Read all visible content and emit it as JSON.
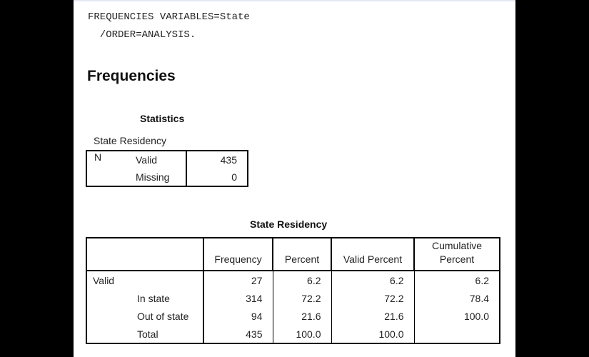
{
  "syntax": {
    "line1": "FREQUENCIES VARIABLES=State",
    "line2": "  /ORDER=ANALYSIS."
  },
  "section_heading": "Frequencies",
  "statistics": {
    "caption": "Statistics",
    "variable_label": "State Residency",
    "rows": [
      {
        "group": "N",
        "label": "Valid",
        "value": "435"
      },
      {
        "group": "",
        "label": "Missing",
        "value": "0"
      }
    ]
  },
  "frequency_table": {
    "caption": "State Residency",
    "headers": [
      "Frequency",
      "Percent",
      "Valid Percent",
      "Cumulative\nPercent"
    ],
    "rows": [
      {
        "group": "Valid",
        "label": "",
        "frequency": "27",
        "percent": "6.2",
        "valid_percent": "6.2",
        "cumulative_percent": "6.2"
      },
      {
        "group": "",
        "label": "In state",
        "frequency": "314",
        "percent": "72.2",
        "valid_percent": "72.2",
        "cumulative_percent": "78.4"
      },
      {
        "group": "",
        "label": "Out of state",
        "frequency": "94",
        "percent": "21.6",
        "valid_percent": "21.6",
        "cumulative_percent": "100.0"
      },
      {
        "group": "",
        "label": "Total",
        "frequency": "435",
        "percent": "100.0",
        "valid_percent": "100.0",
        "cumulative_percent": ""
      }
    ]
  }
}
